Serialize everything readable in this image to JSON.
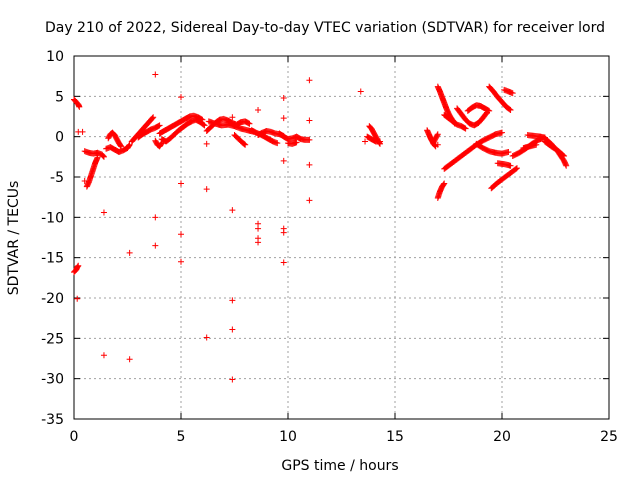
{
  "chart_data": {
    "type": "scatter",
    "title": "Day 210 of 2022, Sidereal Day-to-day VTEC variation (SDTVAR) for receiver lord",
    "xlabel": "GPS time / hours",
    "ylabel": "SDTVAR / TECUs",
    "xlim": [
      0,
      25
    ],
    "ylim": [
      -35,
      10
    ],
    "xticks": [
      0,
      5,
      10,
      15,
      20,
      25
    ],
    "yticks": [
      10,
      5,
      0,
      -5,
      -10,
      -15,
      -20,
      -25,
      -30,
      -35
    ],
    "x_tick_labels": [
      "0",
      "5",
      "10",
      "15",
      "20",
      "25"
    ],
    "y_tick_labels": [
      "10",
      "5",
      "0",
      "-5",
      "-10",
      "-15",
      "-20",
      "-25",
      "-30",
      "-35"
    ],
    "grid": true,
    "marker": "+",
    "color": "#ff0000",
    "series": [
      {
        "name": "SDTVAR",
        "segments": [
          [
            [
              0.0,
              4.6
            ],
            [
              0.1,
              4.3
            ],
            [
              0.2,
              4.0
            ],
            [
              0.25,
              3.7
            ]
          ],
          [
            [
              0.0,
              -16.8
            ],
            [
              0.1,
              -16.5
            ],
            [
              0.15,
              -16.2
            ],
            [
              0.2,
              -16.0
            ]
          ],
          [
            [
              0.6,
              -6.2
            ],
            [
              0.7,
              -5.6
            ],
            [
              0.8,
              -4.8
            ],
            [
              0.9,
              -4.0
            ],
            [
              1.0,
              -3.2
            ],
            [
              1.1,
              -2.6
            ]
          ],
          [
            [
              0.5,
              -1.8
            ],
            [
              0.7,
              -2.0
            ],
            [
              0.9,
              -2.1
            ],
            [
              1.1,
              -2.0
            ],
            [
              1.3,
              -2.2
            ],
            [
              1.4,
              -2.5
            ]
          ],
          [
            [
              1.5,
              -1.5
            ],
            [
              1.7,
              -1.3
            ],
            [
              1.9,
              -1.6
            ],
            [
              2.1,
              -1.9
            ],
            [
              2.3,
              -1.7
            ],
            [
              2.5,
              -1.4
            ],
            [
              2.6,
              -1.0
            ]
          ],
          [
            [
              1.6,
              -0.2
            ],
            [
              1.7,
              0.3
            ],
            [
              1.8,
              0.5
            ],
            [
              1.9,
              0.2
            ],
            [
              2.0,
              -0.3
            ],
            [
              2.1,
              -0.8
            ],
            [
              2.2,
              -1.2
            ]
          ],
          [
            [
              2.7,
              -0.6
            ],
            [
              2.8,
              -0.3
            ],
            [
              2.9,
              0.0
            ],
            [
              3.0,
              0.3
            ],
            [
              3.1,
              0.6
            ],
            [
              3.2,
              0.9
            ],
            [
              3.3,
              1.2
            ],
            [
              3.4,
              1.5
            ],
            [
              3.5,
              1.8
            ],
            [
              3.6,
              2.1
            ],
            [
              3.7,
              2.4
            ]
          ],
          [
            [
              3.0,
              -0.1
            ],
            [
              3.2,
              0.3
            ],
            [
              3.4,
              0.6
            ],
            [
              3.6,
              0.9
            ],
            [
              3.8,
              1.1
            ],
            [
              4.0,
              1.4
            ]
          ],
          [
            [
              4.0,
              0.4
            ],
            [
              4.2,
              0.7
            ],
            [
              4.4,
              1.0
            ],
            [
              4.6,
              1.3
            ],
            [
              4.8,
              1.6
            ],
            [
              5.0,
              1.9
            ],
            [
              5.2,
              2.2
            ],
            [
              5.4,
              2.5
            ],
            [
              5.6,
              2.6
            ],
            [
              5.8,
              2.4
            ],
            [
              6.0,
              2.1
            ]
          ],
          [
            [
              4.1,
              -0.3
            ],
            [
              4.3,
              -0.6
            ],
            [
              4.5,
              -0.2
            ],
            [
              4.7,
              0.3
            ],
            [
              4.9,
              0.8
            ],
            [
              5.1,
              1.2
            ],
            [
              5.3,
              1.6
            ],
            [
              5.5,
              1.9
            ],
            [
              5.7,
              2.1
            ],
            [
              5.9,
              1.8
            ],
            [
              6.1,
              1.4
            ]
          ],
          [
            [
              3.8,
              -0.5
            ],
            [
              3.9,
              -1.0
            ],
            [
              4.0,
              -1.2
            ],
            [
              4.1,
              -0.8
            ]
          ],
          [
            [
              6.2,
              0.7
            ],
            [
              6.4,
              1.2
            ],
            [
              6.6,
              1.7
            ],
            [
              6.8,
              2.1
            ],
            [
              7.0,
              2.2
            ],
            [
              7.2,
              2.0
            ],
            [
              7.4,
              1.7
            ],
            [
              7.6,
              1.5
            ],
            [
              7.8,
              1.8
            ],
            [
              8.0,
              1.9
            ],
            [
              8.2,
              1.6
            ]
          ],
          [
            [
              6.3,
              1.9
            ],
            [
              6.6,
              1.6
            ],
            [
              6.9,
              1.4
            ],
            [
              7.2,
              1.5
            ],
            [
              7.5,
              1.3
            ],
            [
              7.8,
              1.0
            ],
            [
              8.1,
              0.8
            ],
            [
              8.4,
              0.6
            ]
          ],
          [
            [
              7.5,
              0.2
            ],
            [
              7.7,
              -0.3
            ],
            [
              7.9,
              -0.8
            ],
            [
              8.0,
              -1.0
            ]
          ],
          [
            [
              8.3,
              0.8
            ],
            [
              8.5,
              0.5
            ],
            [
              8.7,
              0.3
            ],
            [
              8.9,
              0.0
            ],
            [
              9.1,
              -0.3
            ],
            [
              9.3,
              -0.6
            ],
            [
              9.5,
              -0.8
            ]
          ],
          [
            [
              8.6,
              0.2
            ],
            [
              8.8,
              0.5
            ],
            [
              9.0,
              0.7
            ],
            [
              9.2,
              0.6
            ],
            [
              9.4,
              0.4
            ],
            [
              9.6,
              0.3
            ],
            [
              9.8,
              0.1
            ]
          ],
          [
            [
              9.6,
              0.4
            ],
            [
              9.8,
              0.0
            ],
            [
              10.0,
              -0.3
            ],
            [
              10.2,
              -0.2
            ],
            [
              10.4,
              0.0
            ],
            [
              10.6,
              -0.3
            ],
            [
              10.8,
              -0.4
            ],
            [
              11.0,
              -0.4
            ]
          ],
          [
            [
              10.0,
              -0.8
            ],
            [
              10.2,
              -0.9
            ],
            [
              10.4,
              -0.7
            ]
          ],
          [
            [
              13.8,
              1.3
            ],
            [
              13.9,
              1.0
            ],
            [
              14.0,
              0.5
            ],
            [
              14.1,
              0.0
            ],
            [
              14.2,
              -0.5
            ],
            [
              14.3,
              -0.9
            ]
          ],
          [
            [
              13.7,
              0.0
            ],
            [
              13.9,
              -0.3
            ],
            [
              14.1,
              -0.6
            ],
            [
              14.3,
              -0.6
            ]
          ],
          [
            [
              16.5,
              0.8
            ],
            [
              16.6,
              0.2
            ],
            [
              16.7,
              -0.4
            ],
            [
              16.8,
              -0.7
            ],
            [
              16.9,
              -0.2
            ],
            [
              17.0,
              0.3
            ]
          ],
          [
            [
              16.7,
              -0.3
            ],
            [
              16.8,
              -0.9
            ],
            [
              16.9,
              -1.2
            ]
          ],
          [
            [
              17.0,
              6.2
            ],
            [
              17.1,
              5.6
            ],
            [
              17.2,
              4.9
            ],
            [
              17.3,
              4.2
            ],
            [
              17.4,
              3.5
            ],
            [
              17.5,
              2.9
            ],
            [
              17.6,
              2.4
            ],
            [
              17.7,
              2.0
            ],
            [
              17.8,
              1.6
            ]
          ],
          [
            [
              17.3,
              2.7
            ],
            [
              17.5,
              2.3
            ],
            [
              17.7,
              1.9
            ],
            [
              17.9,
              1.5
            ],
            [
              18.1,
              1.3
            ],
            [
              18.3,
              1.0
            ]
          ],
          [
            [
              17.9,
              3.5
            ],
            [
              18.1,
              2.8
            ],
            [
              18.3,
              2.1
            ],
            [
              18.5,
              1.6
            ],
            [
              18.7,
              1.4
            ],
            [
              18.9,
              1.7
            ],
            [
              19.1,
              2.3
            ],
            [
              19.3,
              3.0
            ]
          ],
          [
            [
              18.4,
              3.2
            ],
            [
              18.6,
              3.6
            ],
            [
              18.8,
              3.9
            ],
            [
              19.0,
              3.8
            ],
            [
              19.2,
              3.5
            ],
            [
              19.4,
              3.2
            ]
          ],
          [
            [
              19.4,
              6.2
            ],
            [
              19.6,
              5.6
            ],
            [
              19.8,
              4.9
            ],
            [
              20.0,
              4.3
            ],
            [
              20.2,
              3.7
            ],
            [
              20.4,
              3.3
            ]
          ],
          [
            [
              20.1,
              5.8
            ],
            [
              20.3,
              5.6
            ],
            [
              20.5,
              5.4
            ]
          ],
          [
            [
              17.0,
              -7.6
            ],
            [
              17.1,
              -6.8
            ],
            [
              17.2,
              -6.2
            ],
            [
              17.3,
              -5.8
            ]
          ],
          [
            [
              17.3,
              -4.0
            ],
            [
              17.6,
              -3.4
            ],
            [
              17.9,
              -2.8
            ],
            [
              18.2,
              -2.2
            ],
            [
              18.5,
              -1.6
            ],
            [
              18.8,
              -1.0
            ],
            [
              19.1,
              -0.5
            ],
            [
              19.4,
              -0.1
            ],
            [
              19.7,
              0.3
            ],
            [
              20.0,
              0.5
            ]
          ],
          [
            [
              18.8,
              -0.9
            ],
            [
              19.1,
              -1.4
            ],
            [
              19.4,
              -1.8
            ],
            [
              19.7,
              -2.0
            ],
            [
              20.0,
              -2.1
            ],
            [
              20.3,
              -1.9
            ]
          ],
          [
            [
              19.5,
              -6.4
            ],
            [
              19.8,
              -5.7
            ],
            [
              20.1,
              -5.1
            ],
            [
              20.4,
              -4.5
            ],
            [
              20.7,
              -3.9
            ]
          ],
          [
            [
              19.8,
              -3.3
            ],
            [
              20.1,
              -3.4
            ],
            [
              20.4,
              -3.6
            ]
          ],
          [
            [
              20.5,
              -2.4
            ],
            [
              20.8,
              -2.0
            ],
            [
              21.1,
              -1.5
            ],
            [
              21.4,
              -0.9
            ],
            [
              21.7,
              -0.4
            ],
            [
              22.0,
              -0.1
            ]
          ],
          [
            [
              21.2,
              0.2
            ],
            [
              21.5,
              0.1
            ],
            [
              21.8,
              0.0
            ],
            [
              22.0,
              -0.1
            ]
          ],
          [
            [
              21.0,
              -1.4
            ],
            [
              21.3,
              -1.2
            ],
            [
              21.6,
              -1.0
            ]
          ],
          [
            [
              22.0,
              -0.2
            ],
            [
              22.3,
              -0.9
            ],
            [
              22.6,
              -1.8
            ],
            [
              22.9,
              -3.0
            ],
            [
              23.0,
              -3.6
            ]
          ],
          [
            [
              22.0,
              -0.6
            ],
            [
              22.3,
              -1.2
            ],
            [
              22.6,
              -1.7
            ],
            [
              22.9,
              -2.4
            ]
          ]
        ],
        "outliers": [
          [
            0.2,
            0.6
          ],
          [
            0.4,
            0.6
          ],
          [
            0.15,
            -20.1
          ],
          [
            0.5,
            -5.5
          ],
          [
            1.4,
            -9.4
          ],
          [
            1.4,
            -27.1
          ],
          [
            2.6,
            -14.4
          ],
          [
            2.6,
            -27.6
          ],
          [
            3.8,
            7.7
          ],
          [
            3.8,
            -10.0
          ],
          [
            3.8,
            -13.5
          ],
          [
            5.0,
            4.9
          ],
          [
            5.0,
            -5.8
          ],
          [
            5.0,
            -12.1
          ],
          [
            5.0,
            -15.5
          ],
          [
            6.2,
            -0.9
          ],
          [
            6.2,
            -6.5
          ],
          [
            6.2,
            -24.9
          ],
          [
            7.4,
            2.4
          ],
          [
            7.4,
            -9.1
          ],
          [
            7.4,
            -20.3
          ],
          [
            7.4,
            -23.9
          ],
          [
            7.4,
            -30.1
          ],
          [
            8.6,
            3.3
          ],
          [
            8.6,
            -10.8
          ],
          [
            8.6,
            -11.4
          ],
          [
            8.6,
            -12.6
          ],
          [
            8.6,
            -13.1
          ],
          [
            9.8,
            4.8
          ],
          [
            9.8,
            2.3
          ],
          [
            9.8,
            -3.0
          ],
          [
            9.8,
            -11.4
          ],
          [
            9.8,
            -11.9
          ],
          [
            9.8,
            -15.6
          ],
          [
            11.0,
            7.0
          ],
          [
            11.0,
            2.0
          ],
          [
            11.0,
            -3.5
          ],
          [
            11.0,
            -7.9
          ],
          [
            13.4,
            5.6
          ],
          [
            13.6,
            -0.6
          ],
          [
            17.0,
            -1.0
          ]
        ]
      }
    ]
  }
}
